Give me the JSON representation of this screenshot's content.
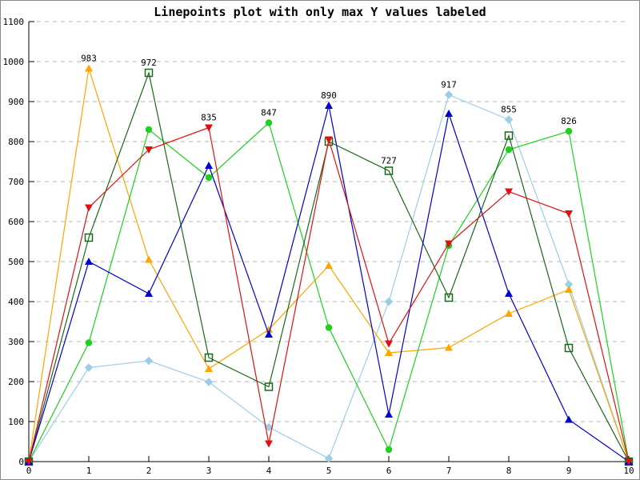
{
  "chart_data": {
    "type": "line",
    "title": "Linepoints plot with only max Y values labeled",
    "xlabel": "",
    "ylabel": "",
    "xlim": [
      0,
      10
    ],
    "ylim": [
      0,
      1100
    ],
    "xticks": [
      0,
      1,
      2,
      3,
      4,
      5,
      6,
      7,
      8,
      9,
      10
    ],
    "yticks": [
      0,
      100,
      200,
      300,
      400,
      500,
      600,
      700,
      800,
      900,
      1000,
      1100
    ],
    "grid": "horizontal-dashed",
    "grid_color": "#b4b4b4",
    "axis_color": "#000000",
    "legend": "none",
    "x": [
      0,
      1,
      2,
      3,
      4,
      5,
      6,
      7,
      8,
      9,
      10
    ],
    "series": [
      {
        "name": "light-blue",
        "color": "#9bcee6",
        "marker": "diamond",
        "values": [
          0,
          235,
          252,
          199,
          86,
          8,
          400,
          917,
          855,
          443,
          0
        ]
      },
      {
        "name": "orange",
        "color": "#ffa500",
        "marker": "triangle-up",
        "values": [
          0,
          983,
          505,
          232,
          330,
          490,
          272,
          285,
          370,
          430,
          0
        ]
      },
      {
        "name": "green",
        "color": "#1ed11e",
        "marker": "circle",
        "values": [
          0,
          297,
          830,
          710,
          847,
          335,
          30,
          540,
          780,
          826,
          0
        ]
      },
      {
        "name": "dark-green",
        "color": "#186818",
        "marker": "square-open",
        "values": [
          0,
          560,
          972,
          260,
          187,
          800,
          727,
          410,
          815,
          284,
          0
        ]
      },
      {
        "name": "blue",
        "color": "#0000d0",
        "marker": "triangle-up",
        "values": [
          0,
          500,
          420,
          740,
          318,
          890,
          118,
          870,
          420,
          105,
          0
        ]
      },
      {
        "name": "red",
        "color": "#e01010",
        "marker": "triangle-down",
        "values": [
          0,
          635,
          780,
          835,
          45,
          805,
          295,
          545,
          675,
          620,
          0
        ]
      }
    ],
    "point_labels": [
      {
        "x": 1,
        "label": "983"
      },
      {
        "x": 2,
        "label": "972"
      },
      {
        "x": 3,
        "label": "835"
      },
      {
        "x": 4,
        "label": "847"
      },
      {
        "x": 5,
        "label": "890"
      },
      {
        "x": 6,
        "label": "727"
      },
      {
        "x": 7,
        "label": "917"
      },
      {
        "x": 8,
        "label": "855"
      },
      {
        "x": 9,
        "label": "826"
      }
    ]
  }
}
